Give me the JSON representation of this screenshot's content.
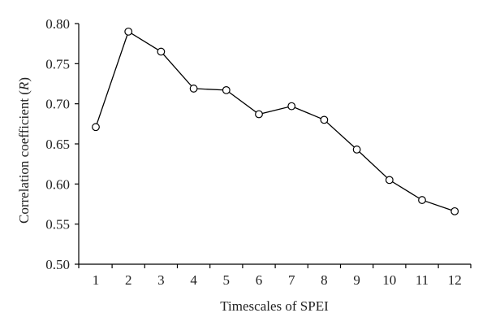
{
  "chart_data": {
    "type": "line",
    "xlabel": "Timescales of SPEI",
    "ylabel_prefix": "Correlation coefficient (",
    "ylabel_symbol": "R",
    "ylabel_suffix": ")",
    "x": [
      1,
      2,
      3,
      4,
      5,
      6,
      7,
      8,
      9,
      10,
      11,
      12
    ],
    "series": [
      {
        "values": [
          0.671,
          0.79,
          0.765,
          0.719,
          0.717,
          0.687,
          0.697,
          0.68,
          0.643,
          0.605,
          0.58,
          0.566
        ]
      }
    ],
    "xticks": [
      "1",
      "2",
      "3",
      "4",
      "5",
      "6",
      "7",
      "8",
      "9",
      "10",
      "11",
      "12"
    ],
    "yticks": [
      0.5,
      0.55,
      0.6,
      0.65,
      0.7,
      0.75,
      0.8
    ],
    "ytick_labels": [
      "0.50",
      "0.55",
      "0.60",
      "0.65",
      "0.70",
      "0.75",
      "0.80"
    ],
    "ylim": [
      0.5,
      0.8
    ],
    "grid": false,
    "colors": {
      "line": "#000000",
      "marker_fill": "#ffffff",
      "axis": "#000000"
    }
  }
}
